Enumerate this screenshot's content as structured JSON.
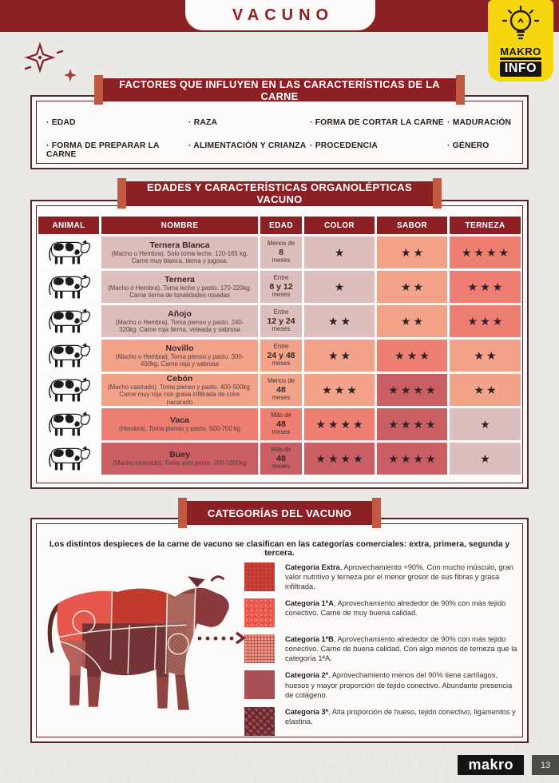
{
  "header": {
    "title": "VACUNO",
    "badge": {
      "line1": "MAKRO",
      "line2": "INFO"
    }
  },
  "factors": {
    "title": "FACTORES QUE INFLUYEN EN LAS CARACTERÍSTICAS DE LA CARNE",
    "items": [
      "EDAD",
      "RAZA",
      "FORMA DE CORTAR LA CARNE",
      "MADURACIÓN",
      "FORMA DE PREPARAR LA CARNE",
      "ALIMENTACIÓN Y CRIANZA",
      "PROCEDENCIA",
      "GÉNERO"
    ]
  },
  "table": {
    "title": "EDADES Y CARACTERÍSTICAS ORGANOLÉPTICAS VACUNO",
    "columns": [
      "ANIMAL",
      "NOMBRE",
      "EDAD",
      "COLOR",
      "SABOR",
      "TERNEZA"
    ],
    "rows": [
      {
        "name": "Ternera Blanca",
        "desc": "(Macho o Hembra). Solo toma leche. 120-165 kg. Carne muy blanca, tierna y jugosa.",
        "age": {
          "prefix": "Menos de",
          "value": "8",
          "suffix": "meses"
        },
        "stars": {
          "color": 1,
          "sabor": 2,
          "terneza": 4
        },
        "tones": {
          "row": "mauve",
          "color": "mauve",
          "sabor": "salmon",
          "terneza": "coral"
        }
      },
      {
        "name": "Ternera",
        "desc": "(Macho o Hembra). Toma leche y pasto. 170-220kg. Carne tierna de tonalidades rosadas",
        "age": {
          "prefix": "Entre",
          "value": "8 y 12",
          "suffix": "meses"
        },
        "stars": {
          "color": 1,
          "sabor": 2,
          "terneza": 3
        },
        "tones": {
          "row": "mauve",
          "color": "mauve",
          "sabor": "salmon",
          "terneza": "coral"
        }
      },
      {
        "name": "Añojo",
        "desc": "(Macho o Hembra). Toma pienso y pasto. 240-320kg. Carne roja tierna, veteada y sabrosa",
        "age": {
          "prefix": "Entre",
          "value": "12 y 24",
          "suffix": "meses"
        },
        "stars": {
          "color": 2,
          "sabor": 2,
          "terneza": 3
        },
        "tones": {
          "row": "mauve",
          "color": "mauve",
          "sabor": "salmon",
          "terneza": "coral"
        }
      },
      {
        "name": "Novillo",
        "desc": "(Macho o Hembra). Toma pienso y pasto. 300-400kg. Carne roja y sabrosa",
        "age": {
          "prefix": "Entre",
          "value": "24 y 48",
          "suffix": "meses"
        },
        "stars": {
          "color": 2,
          "sabor": 3,
          "terneza": 2
        },
        "tones": {
          "row": "salmon",
          "color": "salmon",
          "sabor": "coral",
          "terneza": "salmon"
        }
      },
      {
        "name": "Cebón",
        "desc": "(Macho castrado). Toma pienso y pasto. 400-500kg. Carne muy roja con grasa infiltrada de color nacarado",
        "age": {
          "prefix": "Menos de",
          "value": "48",
          "suffix": "meses"
        },
        "stars": {
          "color": 3,
          "sabor": 4,
          "terneza": 2
        },
        "tones": {
          "row": "salmon",
          "color": "salmon",
          "sabor": "rose",
          "terneza": "salmon"
        }
      },
      {
        "name": "Vaca",
        "desc": "(Hembra). Toma pienso y pasto. 500-700 kg",
        "age": {
          "prefix": "Más de",
          "value": "48",
          "suffix": "meses"
        },
        "stars": {
          "color": 4,
          "sabor": 4,
          "terneza": 1
        },
        "tones": {
          "row": "coral",
          "color": "coral",
          "sabor": "rose",
          "terneza": "mauve"
        }
      },
      {
        "name": "Buey",
        "desc": "(Macho castrado). Toma solo pasto. 700-1000kg",
        "age": {
          "prefix": "Más de",
          "value": "48",
          "suffix": "meses"
        },
        "stars": {
          "color": 4,
          "sabor": 4,
          "terneza": 1
        },
        "tones": {
          "row": "rose",
          "color": "rose",
          "sabor": "rose",
          "terneza": "mauve"
        }
      }
    ]
  },
  "categories": {
    "title": "CATEGORÍAS DEL VACUNO",
    "intro": "Los distintos despieces de la carne de vacuno se clasifican en las categorías comerciales: extra, primera, segunda y tercera.",
    "items": [
      {
        "lead": "Categoría Extra",
        "text": ", Aprovechamiento +90%. Con mucho músculo, gran valor nutritivo y terneza por el menor grosor de sus fibras y grasa infiltrada.",
        "swatch": "extra"
      },
      {
        "lead": "Categoría 1ªA",
        "text": ", Aprovechamiento alrededor de 90% con más tejido conectivo. Carne de muy buena calidad.",
        "swatch": "cat1a"
      },
      {
        "lead": "Categoría 1ªB",
        "text": ", Aprovechamiento alrededor de 90% con más tejido conectivo. Carne de buena calidad. Con algo menos de terneza que la categoría 1ªA.",
        "swatch": "cat1b"
      },
      {
        "lead": "Categoría 2ª",
        "text": ", Aprovechamiento menos del 90% tiene cartílagos, huesos y mayor proporción de tejido conectivo. Abundante presencia de colágeno.",
        "swatch": "cat2"
      },
      {
        "lead": "Categoría 3ª",
        "text": ", Alta proporción de hueso, tejido conectivo, ligamentos y elastina.",
        "swatch": "cat3"
      }
    ]
  },
  "footer": {
    "brand": "makro",
    "page": "13"
  },
  "icons": {
    "badge": "lightbulb-icon",
    "animal": "cow-icon",
    "diagram": "beef-cuts-cow-diagram",
    "arrow": "dotted-arrow-icon",
    "decoration": "sparkle-icon",
    "star": "star-icon"
  },
  "palette": {
    "maroon": "#8d2025",
    "banner_end": "#c25a42",
    "yellow": "#f6d60e",
    "mauve": "#dcbfbd",
    "salmon": "#f4a38b",
    "coral": "#ee7d72",
    "rose": "#ca5e65",
    "star": "#2c2328",
    "cat_extra": "#bf3a31",
    "cat_1a": "#ea5a4e",
    "cat_1b": "#e49a8e",
    "cat_2": "#a65055",
    "cat_3": "#9c454b"
  }
}
